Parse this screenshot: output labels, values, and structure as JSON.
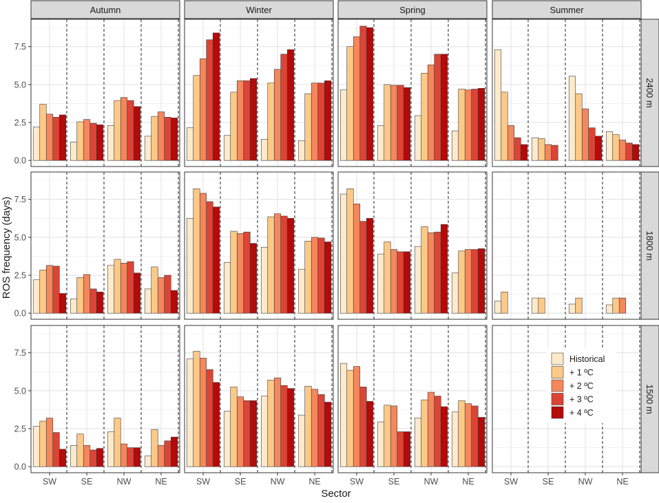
{
  "chart_data": {
    "type": "bar",
    "xlabel": "Sector",
    "ylabel": "ROS frequency (days)",
    "columns": [
      "Autumn",
      "Winter",
      "Spring",
      "Summer"
    ],
    "rows": [
      "2400 m",
      "1800 m",
      "1500 m"
    ],
    "categories": [
      "SW",
      "SE",
      "NW",
      "NE"
    ],
    "y_ticks": [
      "0.0",
      "2.5",
      "5.0",
      "7.5"
    ],
    "ylim": [
      -0.4,
      9.3
    ],
    "grid": true,
    "legend_position": "bottom-right panel",
    "series_names": [
      "Historical",
      "+ 1 ºC",
      "+ 2 ºC",
      "+ 3 ºC",
      "+ 4 ºC"
    ],
    "colors": [
      "#fdeacb",
      "#fdc987",
      "#f4875c",
      "#dc4435",
      "#b40a0a"
    ],
    "panels": [
      {
        "season": "Autumn",
        "elevation": "2400 m",
        "values": [
          [
            2.2,
            3.7,
            3.05,
            2.85,
            3.0
          ],
          [
            1.2,
            2.55,
            2.7,
            2.45,
            2.35
          ],
          [
            2.3,
            3.95,
            4.15,
            3.95,
            3.55
          ],
          [
            1.6,
            2.9,
            3.2,
            2.85,
            2.8
          ]
        ]
      },
      {
        "season": "Winter",
        "elevation": "2400 m",
        "values": [
          [
            2.15,
            5.6,
            6.7,
            7.95,
            8.4
          ],
          [
            1.65,
            4.5,
            5.25,
            5.25,
            5.4
          ],
          [
            1.4,
            5.1,
            6.0,
            7.0,
            7.3
          ],
          [
            1.3,
            4.4,
            5.1,
            5.1,
            5.25
          ]
        ]
      },
      {
        "season": "Spring",
        "elevation": "2400 m",
        "values": [
          [
            4.65,
            7.5,
            8.15,
            8.85,
            8.75
          ],
          [
            2.3,
            5.0,
            4.95,
            4.95,
            4.8
          ],
          [
            2.95,
            5.75,
            6.3,
            7.0,
            7.0
          ],
          [
            1.95,
            4.7,
            4.65,
            4.7,
            4.75
          ]
        ]
      },
      {
        "season": "Summer",
        "elevation": "2400 m",
        "values": [
          [
            7.3,
            4.5,
            2.3,
            1.5,
            1.05
          ],
          [
            1.5,
            1.45,
            1.05,
            1.0,
            null
          ],
          [
            5.55,
            4.4,
            3.4,
            2.15,
            1.6
          ],
          [
            1.9,
            1.7,
            1.35,
            1.15,
            1.05
          ]
        ]
      },
      {
        "season": "Autumn",
        "elevation": "1800 m",
        "values": [
          [
            2.2,
            2.85,
            3.15,
            3.1,
            1.3
          ],
          [
            0.95,
            2.35,
            2.55,
            1.6,
            1.4
          ],
          [
            3.15,
            3.55,
            3.3,
            3.4,
            2.65
          ],
          [
            1.6,
            3.05,
            2.35,
            2.5,
            1.5
          ]
        ]
      },
      {
        "season": "Winter",
        "elevation": "1800 m",
        "values": [
          [
            6.25,
            8.2,
            7.9,
            7.35,
            7.0
          ],
          [
            3.35,
            5.4,
            5.25,
            5.35,
            4.6
          ],
          [
            4.35,
            6.35,
            6.55,
            6.4,
            6.25
          ],
          [
            2.9,
            4.75,
            5.0,
            4.95,
            4.7
          ]
        ]
      },
      {
        "season": "Spring",
        "elevation": "1800 m",
        "values": [
          [
            7.85,
            8.2,
            7.2,
            6.05,
            6.25
          ],
          [
            3.9,
            4.7,
            4.2,
            4.05,
            4.05
          ],
          [
            4.4,
            5.7,
            5.3,
            5.35,
            5.85
          ],
          [
            2.65,
            4.1,
            4.2,
            4.2,
            4.25
          ]
        ]
      },
      {
        "season": "Summer",
        "elevation": "1800 m",
        "values": [
          [
            0.8,
            1.4,
            null,
            null,
            null
          ],
          [
            1.0,
            1.0,
            null,
            null,
            null
          ],
          [
            0.6,
            1.0,
            null,
            null,
            null
          ],
          [
            0.55,
            1.0,
            1.0,
            null,
            null
          ]
        ]
      },
      {
        "season": "Autumn",
        "elevation": "1500 m",
        "values": [
          [
            2.65,
            3.0,
            3.2,
            2.25,
            1.15
          ],
          [
            1.4,
            2.15,
            1.4,
            1.1,
            1.2
          ],
          [
            2.3,
            3.2,
            1.5,
            1.25,
            1.25
          ],
          [
            0.7,
            2.45,
            1.4,
            1.7,
            1.95
          ]
        ]
      },
      {
        "season": "Winter",
        "elevation": "1500 m",
        "values": [
          [
            7.1,
            7.6,
            7.15,
            6.4,
            5.55
          ],
          [
            3.65,
            5.25,
            4.6,
            4.35,
            4.35
          ],
          [
            4.65,
            5.7,
            5.85,
            5.35,
            5.15
          ],
          [
            3.4,
            5.3,
            5.1,
            4.75,
            4.25
          ]
        ]
      },
      {
        "season": "Spring",
        "elevation": "1500 m",
        "values": [
          [
            6.8,
            6.35,
            6.6,
            5.25,
            4.3
          ],
          [
            2.95,
            4.05,
            4.0,
            2.3,
            2.3
          ],
          [
            3.2,
            4.4,
            4.9,
            4.65,
            3.95
          ],
          [
            3.6,
            4.35,
            4.15,
            4.0,
            3.25
          ]
        ]
      },
      {
        "season": "Summer",
        "elevation": "1500 m",
        "values": [
          [
            null,
            null,
            null,
            null,
            null
          ],
          [
            null,
            null,
            null,
            null,
            null
          ],
          [
            null,
            null,
            null,
            null,
            null
          ],
          [
            null,
            null,
            null,
            null,
            null
          ]
        ]
      }
    ]
  }
}
